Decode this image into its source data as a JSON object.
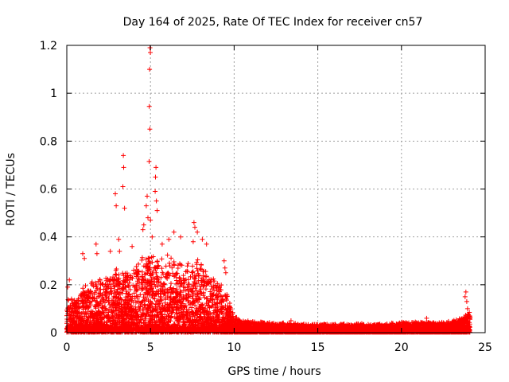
{
  "chart_data": {
    "type": "scatter",
    "title": "Day 164 of 2025, Rate Of TEC Index for receiver cn57",
    "xlabel": "GPS time / hours",
    "ylabel": "ROTI / TECUs",
    "xlim": [
      0,
      25
    ],
    "ylim": [
      0,
      1.2
    ],
    "xticks": [
      0,
      5,
      10,
      15,
      20,
      25
    ],
    "xtick_labels": [
      "0",
      "5",
      "10",
      "15",
      "20",
      "25"
    ],
    "yticks": [
      0,
      0.2,
      0.4,
      0.6,
      0.8,
      1.0,
      1.2
    ],
    "ytick_labels": [
      "0",
      "0.2",
      "0.4",
      "0.6",
      "0.8",
      "1",
      "1.2"
    ],
    "grid": true,
    "marker": "+",
    "color": "#ff0000",
    "notable_points": [
      {
        "x": 4.97,
        "y": 1.19
      },
      {
        "x": 4.99,
        "y": 1.17
      },
      {
        "x": 4.95,
        "y": 1.1
      },
      {
        "x": 4.93,
        "y": 0.945
      },
      {
        "x": 4.96,
        "y": 0.85
      },
      {
        "x": 4.92,
        "y": 0.715
      },
      {
        "x": 3.38,
        "y": 0.74
      },
      {
        "x": 3.4,
        "y": 0.69
      },
      {
        "x": 3.35,
        "y": 0.61
      },
      {
        "x": 2.9,
        "y": 0.58
      },
      {
        "x": 2.95,
        "y": 0.53
      },
      {
        "x": 3.45,
        "y": 0.52
      },
      {
        "x": 5.33,
        "y": 0.69
      },
      {
        "x": 5.3,
        "y": 0.65
      },
      {
        "x": 5.28,
        "y": 0.59
      },
      {
        "x": 5.35,
        "y": 0.55
      },
      {
        "x": 5.4,
        "y": 0.51
      },
      {
        "x": 4.8,
        "y": 0.57
      },
      {
        "x": 4.75,
        "y": 0.53
      },
      {
        "x": 4.85,
        "y": 0.48
      },
      {
        "x": 4.6,
        "y": 0.45
      },
      {
        "x": 4.55,
        "y": 0.43
      },
      {
        "x": 5.0,
        "y": 0.47
      },
      {
        "x": 5.1,
        "y": 0.4
      },
      {
        "x": 3.9,
        "y": 0.36
      },
      {
        "x": 3.1,
        "y": 0.39
      },
      {
        "x": 3.15,
        "y": 0.34
      },
      {
        "x": 2.6,
        "y": 0.34
      },
      {
        "x": 1.75,
        "y": 0.37
      },
      {
        "x": 1.8,
        "y": 0.33
      },
      {
        "x": 0.95,
        "y": 0.33
      },
      {
        "x": 1.05,
        "y": 0.31
      },
      {
        "x": 0.15,
        "y": 0.22
      },
      {
        "x": 0.05,
        "y": 0.19
      },
      {
        "x": 6.4,
        "y": 0.42
      },
      {
        "x": 6.1,
        "y": 0.39
      },
      {
        "x": 5.7,
        "y": 0.37
      },
      {
        "x": 6.8,
        "y": 0.4
      },
      {
        "x": 7.6,
        "y": 0.46
      },
      {
        "x": 7.65,
        "y": 0.44
      },
      {
        "x": 7.8,
        "y": 0.42
      },
      {
        "x": 7.55,
        "y": 0.38
      },
      {
        "x": 8.1,
        "y": 0.39
      },
      {
        "x": 8.35,
        "y": 0.37
      },
      {
        "x": 9.4,
        "y": 0.3
      },
      {
        "x": 9.45,
        "y": 0.27
      },
      {
        "x": 9.5,
        "y": 0.25
      },
      {
        "x": 23.85,
        "y": 0.17
      },
      {
        "x": 23.8,
        "y": 0.15
      },
      {
        "x": 23.9,
        "y": 0.13
      },
      {
        "x": 23.95,
        "y": 0.1
      },
      {
        "x": 13.4,
        "y": 0.05
      },
      {
        "x": 21.5,
        "y": 0.06
      }
    ],
    "envelope": {
      "description": "approximate upper envelope of the dense point cloud (hours, ROTI)",
      "points": [
        [
          0.0,
          0.14
        ],
        [
          0.5,
          0.13
        ],
        [
          1.0,
          0.18
        ],
        [
          1.5,
          0.2
        ],
        [
          2.0,
          0.22
        ],
        [
          2.5,
          0.23
        ],
        [
          3.0,
          0.25
        ],
        [
          3.5,
          0.24
        ],
        [
          4.0,
          0.26
        ],
        [
          4.5,
          0.3
        ],
        [
          5.0,
          0.32
        ],
        [
          5.5,
          0.28
        ],
        [
          6.0,
          0.3
        ],
        [
          6.5,
          0.28
        ],
        [
          7.0,
          0.27
        ],
        [
          7.5,
          0.29
        ],
        [
          8.0,
          0.28
        ],
        [
          8.5,
          0.24
        ],
        [
          9.0,
          0.2
        ],
        [
          9.5,
          0.17
        ],
        [
          10.0,
          0.07
        ],
        [
          10.5,
          0.05
        ],
        [
          11.0,
          0.045
        ],
        [
          12.0,
          0.04
        ],
        [
          13.0,
          0.04
        ],
        [
          14.0,
          0.035
        ],
        [
          15.0,
          0.035
        ],
        [
          16.0,
          0.035
        ],
        [
          17.0,
          0.035
        ],
        [
          18.0,
          0.035
        ],
        [
          19.0,
          0.035
        ],
        [
          20.0,
          0.04
        ],
        [
          21.0,
          0.045
        ],
        [
          22.0,
          0.04
        ],
        [
          23.0,
          0.045
        ],
        [
          23.5,
          0.06
        ],
        [
          24.0,
          0.08
        ]
      ]
    }
  }
}
